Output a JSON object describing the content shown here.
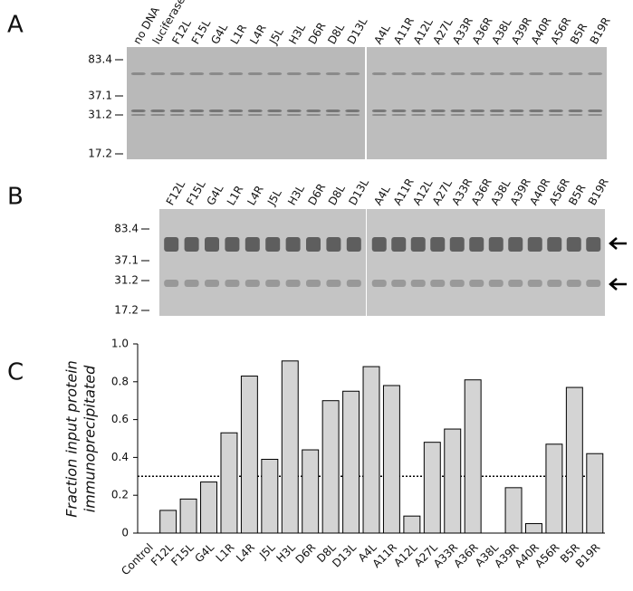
{
  "panel_a": {
    "label": "A",
    "lanes": [
      "no DNA",
      "luciferase",
      "F12L",
      "F15L",
      "G4L",
      "L1R",
      "L4R",
      "J5L",
      "H3L",
      "D6R",
      "D8L",
      "D13L",
      "A4L",
      "A11R",
      "A12L",
      "A27L",
      "A33R",
      "A36R",
      "A38L",
      "A39R",
      "A40R",
      "A56R",
      "B5R",
      "B19R"
    ],
    "markers": [
      "83.4",
      "37.1",
      "31.2",
      "17.2"
    ]
  },
  "panel_b": {
    "label": "B",
    "lanes": [
      "F12L",
      "F15L",
      "G4L",
      "L1R",
      "L4R",
      "J5L",
      "H3L",
      "D6R",
      "D8L",
      "D13L",
      "A4L",
      "A11R",
      "A12L",
      "A27L",
      "A33R",
      "A36R",
      "A38L",
      "A39R",
      "A40R",
      "A56R",
      "B5R",
      "B19R"
    ],
    "markers": [
      "83.4",
      "37.1",
      "31.2",
      "17.2"
    ]
  },
  "chart_data": {
    "type": "bar",
    "panel_label": "C",
    "ylabel": [
      "Fraction input protein",
      "immunoprecipitated"
    ],
    "categories": [
      "Control",
      "F12L",
      "F15L",
      "G4L",
      "L1R",
      "L4R",
      "J5L",
      "H3L",
      "D6R",
      "D8L",
      "D13L",
      "A4L",
      "A11R",
      "A12L",
      "A27L",
      "A33R",
      "A36R",
      "A38L",
      "A39R",
      "A40R",
      "A56R",
      "B5R",
      "B19R"
    ],
    "values": [
      0,
      0.12,
      0.18,
      0.27,
      0.53,
      0.83,
      0.39,
      0.91,
      0.44,
      0.7,
      0.75,
      0.88,
      0.78,
      0.09,
      0.48,
      0.55,
      0.81,
      0,
      0.24,
      0.05,
      0.47,
      0.77,
      0.42
    ],
    "color": "#d4d4d4",
    "reference_line": 0.3,
    "ylim": [
      0,
      1
    ],
    "yticks": [
      0,
      0.2,
      0.4,
      0.6,
      0.8,
      {
        "value": 1,
        "label": "1.0"
      }
    ]
  }
}
